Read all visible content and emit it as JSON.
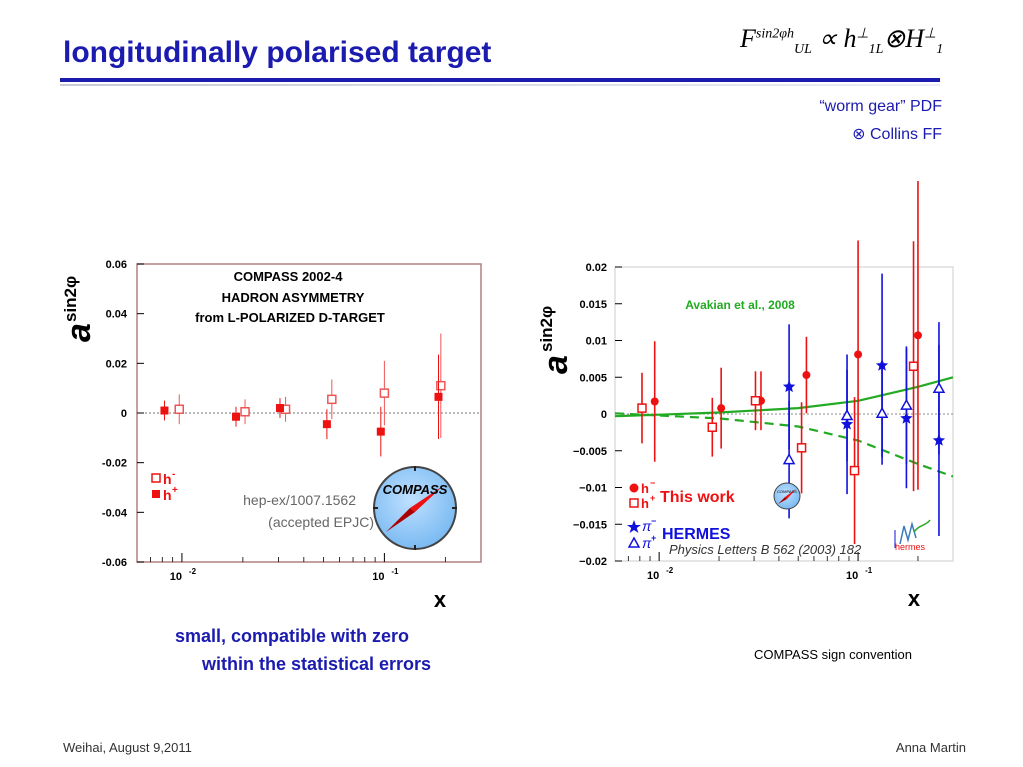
{
  "slide": {
    "title": "longitudinally polarised target",
    "formula": {
      "F": "F",
      "F_sup": "sin2φh",
      "F_sub": "UL",
      "prop": "∝",
      "h": "h",
      "h_sup": "⊥",
      "h_sub": "1L",
      "otimes": "⊗",
      "H": "H",
      "H_sup": "⊥",
      "H_sub": "1"
    },
    "note_line1": "“worm gear” PDF",
    "note_line2": "⊗ Collins FF",
    "caption_line1": "small, compatible with zero",
    "caption_line2": "within the statistical errors",
    "sign_convention": "COMPASS sign convention",
    "footer_left": "Weihai, August 9,2011",
    "footer_right": "Anna Martin"
  },
  "colors": {
    "title": "#1b1bb0",
    "red": "#ee1111",
    "blue": "#1111dd",
    "green": "#22aa22"
  },
  "chart_data": [
    {
      "type": "scatter",
      "title": "COMPASS 2002-4",
      "subtitle_line1": "HADRON ASYMMETRY",
      "subtitle_line2": "from L-POLARIZED D-TARGET",
      "ylabel": "a",
      "ylabel_sup": "sin2φ",
      "xlabel": "x",
      "x_scale": "log",
      "xlim": [
        0.006,
        0.3
      ],
      "ylim": [
        -0.06,
        0.06
      ],
      "y_ticks": [
        "0.06",
        "0.04",
        "0.02",
        "0",
        "-0.02",
        "-0.04",
        "-0.06"
      ],
      "x_ticks": [
        {
          "base": "10",
          "exp": "-2",
          "value": 0.01
        },
        {
          "base": "10",
          "exp": "-1",
          "value": 0.1
        }
      ],
      "legend": {
        "hminus": "h",
        "hminus_sup": "-",
        "hplus": "h",
        "hplus_sup": "+"
      },
      "reference_line1": "hep-ex/1007.1562",
      "reference_line2": "(accepted EPJC)",
      "logo_text": "COMPASS",
      "series": [
        {
          "name": "h-",
          "marker": "open-square",
          "points": [
            {
              "x": 0.0097,
              "y": 0.0015,
              "err": 0.006
            },
            {
              "x": 0.0205,
              "y": 0.0005,
              "err": 0.005
            },
            {
              "x": 0.0325,
              "y": 0.0015,
              "err": 0.005
            },
            {
              "x": 0.055,
              "y": 0.0055,
              "err": 0.008
            },
            {
              "x": 0.1,
              "y": 0.008,
              "err": 0.013
            },
            {
              "x": 0.19,
              "y": 0.011,
              "err": 0.021
            }
          ]
        },
        {
          "name": "h+",
          "marker": "filled-square",
          "points": [
            {
              "x": 0.0082,
              "y": 0.001,
              "err": 0.004
            },
            {
              "x": 0.0185,
              "y": -0.0015,
              "err": 0.004
            },
            {
              "x": 0.0305,
              "y": 0.002,
              "err": 0.004
            },
            {
              "x": 0.052,
              "y": -0.0045,
              "err": 0.006
            },
            {
              "x": 0.096,
              "y": -0.0075,
              "err": 0.01
            },
            {
              "x": 0.185,
              "y": 0.0065,
              "err": 0.017
            }
          ]
        }
      ]
    },
    {
      "type": "scatter",
      "ylabel": "a",
      "ylabel_sup": "sin2φ",
      "xlabel": "x",
      "x_scale": "log",
      "xlim": [
        0.006,
        0.3
      ],
      "ylim": [
        -0.02,
        0.02
      ],
      "y_ticks": [
        "0.02",
        "0.015",
        "0.01",
        "0.005",
        "0",
        "−0.005",
        "−0.01",
        "−0.015",
        "−0.02"
      ],
      "x_ticks": [
        {
          "base": "10",
          "exp": "-2",
          "value": 0.01
        },
        {
          "base": "10",
          "exp": "-1",
          "value": 0.1
        }
      ],
      "model_label": "Avakian et al., 2008",
      "legend": {
        "compass": "This work",
        "hermes": "HERMES",
        "hminus": "h",
        "hminus_sup": "−",
        "hplus": "h",
        "hplus_sup": "+",
        "piminus": "π",
        "piminus_sup": "−",
        "piplus": "π",
        "piplus_sup": "+"
      },
      "reference": "Physics Letters B 562 (2003) 182",
      "hermes_logo_text": "hermes",
      "compass_logo_text": "COMPASS",
      "series": [
        {
          "name": "h−",
          "marker": "filled-circle",
          "points": [
            {
              "x": 0.0095,
              "y": 0.0017,
              "err": 0.0082
            },
            {
              "x": 0.0205,
              "y": 0.0008,
              "err": 0.0055
            },
            {
              "x": 0.0325,
              "y": 0.0018,
              "err": 0.004
            },
            {
              "x": 0.055,
              "y": 0.0053,
              "err": 0.0052
            },
            {
              "x": 0.1,
              "y": 0.0081,
              "err": 0.0155
            },
            {
              "x": 0.2,
              "y": 0.0107,
              "err": 0.021
            }
          ]
        },
        {
          "name": "h+",
          "marker": "open-square",
          "points": [
            {
              "x": 0.0082,
              "y": 0.0008,
              "err": 0.0048
            },
            {
              "x": 0.0185,
              "y": -0.0018,
              "err": 0.004
            },
            {
              "x": 0.0305,
              "y": 0.0018,
              "err": 0.004
            },
            {
              "x": 0.052,
              "y": -0.0046,
              "err": 0.0062
            },
            {
              "x": 0.096,
              "y": -0.0077,
              "err": 0.01
            },
            {
              "x": 0.19,
              "y": 0.0065,
              "err": 0.017
            }
          ]
        },
        {
          "name": "π−",
          "marker": "filled-star",
          "points": [
            {
              "x": 0.045,
              "y": 0.0037,
              "err": 0.0085
            },
            {
              "x": 0.088,
              "y": -0.0014,
              "err": 0.0095
            },
            {
              "x": 0.132,
              "y": 0.0066,
              "err": 0.0125
            },
            {
              "x": 0.175,
              "y": -0.0006,
              "err": 0.0095
            },
            {
              "x": 0.255,
              "y": -0.0036,
              "err": 0.013
            }
          ]
        },
        {
          "name": "π+",
          "marker": "open-triangle",
          "points": [
            {
              "x": 0.045,
              "y": -0.0062,
              "err": 0.008
            },
            {
              "x": 0.088,
              "y": -0.0002,
              "err": 0.0062
            },
            {
              "x": 0.132,
              "y": 0.0001,
              "err": 0.007
            },
            {
              "x": 0.175,
              "y": 0.0012,
              "err": 0.008
            },
            {
              "x": 0.255,
              "y": 0.0035,
              "err": 0.009
            }
          ]
        }
      ],
      "curves": [
        {
          "name": "model-solid",
          "style": "solid",
          "points": [
            {
              "x": 0.006,
              "y": -0.0003
            },
            {
              "x": 0.01,
              "y": -0.0001
            },
            {
              "x": 0.02,
              "y": 0.0002
            },
            {
              "x": 0.05,
              "y": 0.0008
            },
            {
              "x": 0.1,
              "y": 0.0018
            },
            {
              "x": 0.2,
              "y": 0.0037
            },
            {
              "x": 0.3,
              "y": 0.005
            }
          ]
        },
        {
          "name": "model-dashed",
          "style": "dashed",
          "points": [
            {
              "x": 0.006,
              "y": 0.0001
            },
            {
              "x": 0.01,
              "y": -0.0002
            },
            {
              "x": 0.02,
              "y": -0.0006
            },
            {
              "x": 0.05,
              "y": -0.0017
            },
            {
              "x": 0.1,
              "y": -0.0036
            },
            {
              "x": 0.2,
              "y": -0.0068
            },
            {
              "x": 0.3,
              "y": -0.0085
            }
          ]
        }
      ]
    }
  ]
}
